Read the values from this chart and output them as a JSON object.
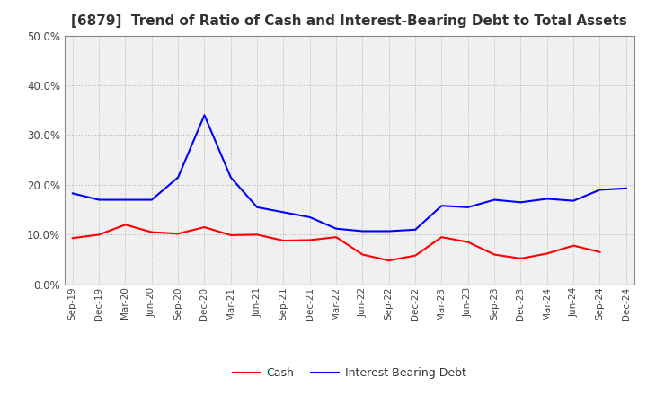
{
  "title": "[6879]  Trend of Ratio of Cash and Interest-Bearing Debt to Total Assets",
  "x_labels": [
    "Sep-19",
    "Dec-19",
    "Mar-20",
    "Jun-20",
    "Sep-20",
    "Dec-20",
    "Mar-21",
    "Jun-21",
    "Sep-21",
    "Dec-21",
    "Mar-22",
    "Jun-22",
    "Sep-22",
    "Dec-22",
    "Mar-23",
    "Jun-23",
    "Sep-23",
    "Dec-23",
    "Mar-24",
    "Jun-24",
    "Sep-24",
    "Dec-24"
  ],
  "cash": [
    0.093,
    0.1,
    0.12,
    0.105,
    0.102,
    0.115,
    0.099,
    0.1,
    0.088,
    0.089,
    0.095,
    0.06,
    0.048,
    0.058,
    0.095,
    0.085,
    0.06,
    0.052,
    0.062,
    0.078,
    0.065,
    null
  ],
  "ibd": [
    0.183,
    0.17,
    0.17,
    0.17,
    0.215,
    0.34,
    0.215,
    0.155,
    0.145,
    0.135,
    0.112,
    0.107,
    0.107,
    0.11,
    0.158,
    0.155,
    0.17,
    0.165,
    0.172,
    0.168,
    0.19,
    0.193
  ],
  "cash_color": "#FF0000",
  "ibd_color": "#0000FF",
  "ylim": [
    0.0,
    0.5
  ],
  "yticks": [
    0.0,
    0.1,
    0.2,
    0.3,
    0.4,
    0.5
  ],
  "background_color": "#FFFFFF",
  "plot_bg_color": "#F0F0F0",
  "grid_color": "#AAAAAA",
  "title_fontsize": 11,
  "legend_cash": "Cash",
  "legend_ibd": "Interest-Bearing Debt"
}
